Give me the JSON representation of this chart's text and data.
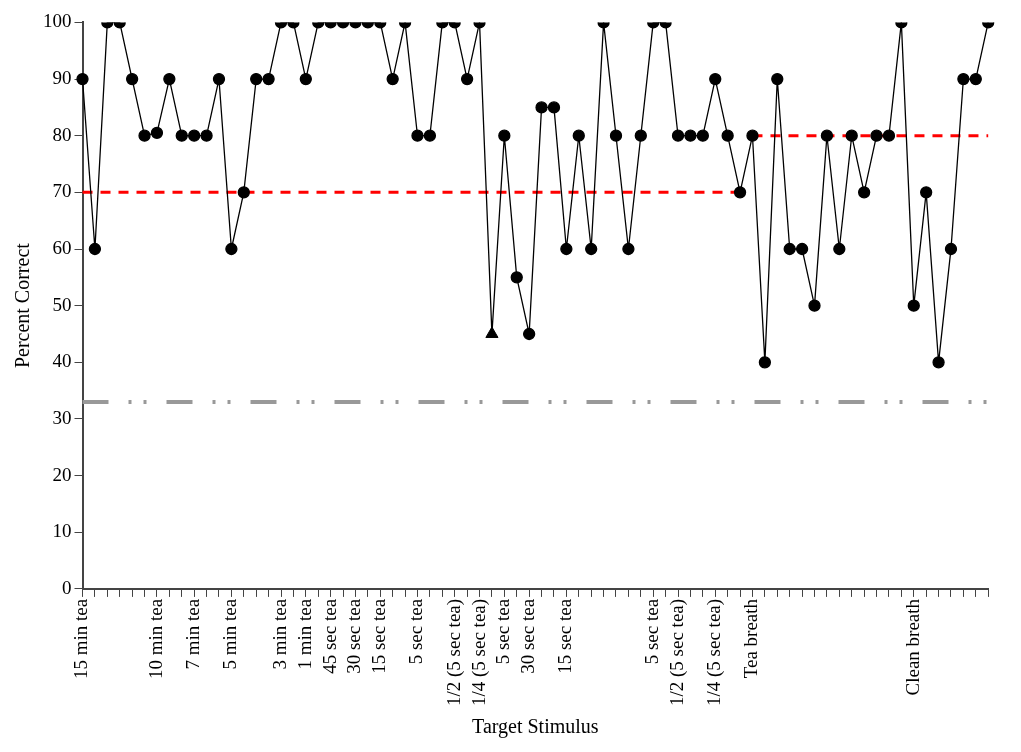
{
  "chart_data": {
    "type": "line",
    "xlabel": "Target Stimulus",
    "ylabel": "Percent Correct",
    "categories": [
      "15 min tea",
      null,
      null,
      null,
      null,
      null,
      "10 min tea",
      null,
      null,
      "7 min tea",
      null,
      null,
      "5 min tea",
      null,
      null,
      null,
      "3 min tea",
      null,
      "1 min tea",
      null,
      "45 sec tea",
      null,
      "30 sec tea",
      null,
      "15 sec tea",
      null,
      null,
      "5 sec tea",
      null,
      null,
      "1/2 (5 sec tea)",
      null,
      "1/4 (5 sec tea)",
      null,
      "5 sec tea",
      null,
      "30 sec tea",
      null,
      null,
      "15 sec tea",
      null,
      null,
      null,
      null,
      null,
      null,
      "5 sec tea",
      null,
      "1/2 (5 sec tea)",
      null,
      null,
      "1/4 (5 sec tea)",
      null,
      null,
      "Tea breath",
      null,
      null,
      null,
      null,
      null,
      null,
      null,
      null,
      null,
      null,
      null,
      null,
      "Clean breath",
      null,
      null,
      null,
      null,
      null,
      null
    ],
    "series": [
      {
        "color": "#000000",
        "marker": "circle",
        "line_style": "solid",
        "values": [
          90,
          60,
          100,
          100,
          90,
          80,
          80.5,
          90,
          80,
          80,
          80,
          90,
          60,
          70,
          90,
          90,
          100,
          100,
          90,
          100,
          100,
          100,
          100,
          100,
          100,
          90,
          100,
          80,
          80,
          100,
          100,
          90,
          100,
          45,
          80,
          55,
          45,
          85,
          85,
          60,
          80,
          60,
          100,
          80,
          60,
          80,
          100,
          100,
          80,
          80,
          80,
          90,
          80,
          70,
          80,
          40,
          90,
          60,
          60,
          50,
          80,
          60,
          80,
          70,
          80,
          80,
          100,
          50,
          70,
          40,
          60,
          90,
          90,
          100
        ]
      },
      {
        "type": "scatter",
        "color": "#000000",
        "marker": "triangle",
        "values": [
          null,
          null,
          null,
          null,
          null,
          null,
          null,
          null,
          null,
          null,
          null,
          null,
          null,
          null,
          null,
          null,
          null,
          null,
          null,
          null,
          null,
          null,
          null,
          null,
          null,
          null,
          null,
          null,
          null,
          null,
          null,
          null,
          null,
          45,
          null,
          null,
          null,
          null,
          null,
          null,
          null,
          null,
          null,
          null,
          null,
          null,
          null,
          null,
          null,
          null,
          null,
          null,
          null,
          null,
          null,
          null,
          null,
          null,
          null,
          null,
          null,
          null,
          null,
          null,
          null,
          null,
          null,
          null,
          null,
          null,
          null,
          null,
          null,
          null
        ]
      },
      {
        "color": "#ff0000",
        "marker": "none",
        "line_style": "dashed",
        "values": [
          70,
          70,
          70,
          70,
          70,
          70,
          70,
          70,
          70,
          70,
          70,
          70,
          70,
          70,
          70,
          70,
          70,
          70,
          70,
          70,
          70,
          70,
          70,
          70,
          70,
          70,
          70,
          70,
          70,
          70,
          70,
          70,
          70,
          70,
          70,
          70,
          70,
          70,
          70,
          70,
          70,
          70,
          70,
          70,
          70,
          70,
          70,
          70,
          70,
          70,
          70,
          70,
          70,
          70,
          null,
          null,
          null,
          null,
          null,
          null,
          null,
          null,
          null,
          null,
          null,
          null,
          null,
          null,
          null,
          null,
          null,
          null,
          null,
          null
        ]
      },
      {
        "color": "#ff0000",
        "marker": "none",
        "line_style": "dashed",
        "values": [
          null,
          null,
          null,
          null,
          null,
          null,
          null,
          null,
          null,
          null,
          null,
          null,
          null,
          null,
          null,
          null,
          null,
          null,
          null,
          null,
          null,
          null,
          null,
          null,
          null,
          null,
          null,
          null,
          null,
          null,
          null,
          null,
          null,
          null,
          null,
          null,
          null,
          null,
          null,
          null,
          null,
          null,
          null,
          null,
          null,
          null,
          null,
          null,
          null,
          null,
          null,
          null,
          null,
          null,
          80,
          80,
          80,
          80,
          80,
          80,
          80,
          80,
          80,
          80,
          80,
          80,
          80,
          80,
          80,
          80,
          80,
          80,
          80,
          80
        ]
      }
    ],
    "ref_lines": [
      {
        "axis": "y",
        "value": 33,
        "color": "#999999",
        "line_style": "dashed"
      }
    ],
    "ylim": [
      0,
      100
    ],
    "yticks": [
      0,
      10,
      20,
      30,
      40,
      50,
      60,
      70,
      80,
      90,
      100
    ],
    "grid": false,
    "legend": false
  }
}
